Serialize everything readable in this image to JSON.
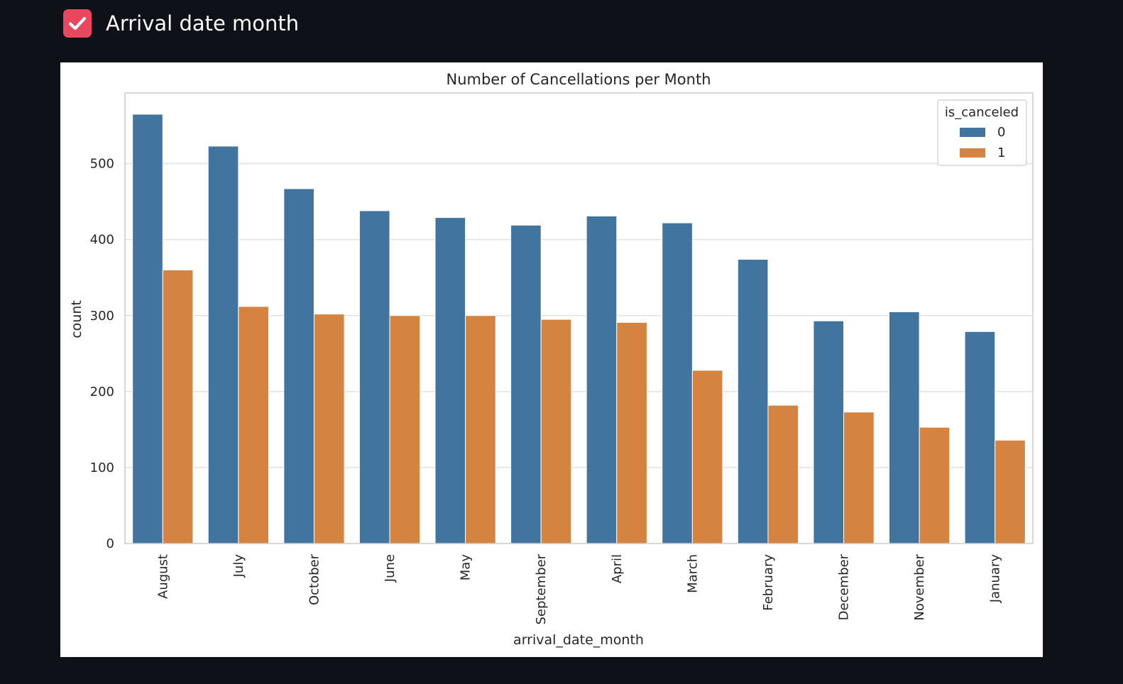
{
  "control": {
    "label": "Arrival date month",
    "checked": true,
    "accent_color": "#e8475f"
  },
  "chart_data": {
    "type": "bar",
    "title": "Number of Cancellations per Month",
    "xlabel": "arrival_date_month",
    "ylabel": "count",
    "categories": [
      "August",
      "July",
      "October",
      "June",
      "May",
      "September",
      "April",
      "March",
      "February",
      "December",
      "November",
      "January"
    ],
    "series": [
      {
        "name": "0",
        "color": "#4274a0",
        "values": [
          565,
          523,
          467,
          438,
          429,
          419,
          431,
          422,
          374,
          293,
          305,
          279
        ]
      },
      {
        "name": "1",
        "color": "#d48440",
        "values": [
          360,
          312,
          302,
          300,
          300,
          295,
          291,
          228,
          182,
          173,
          153,
          136
        ]
      }
    ],
    "ylim": [
      0,
      593
    ],
    "yticks": [
      0,
      100,
      200,
      300,
      400,
      500
    ],
    "grid": true,
    "legend": {
      "title": "is_canceled",
      "placement": "top-right"
    }
  }
}
